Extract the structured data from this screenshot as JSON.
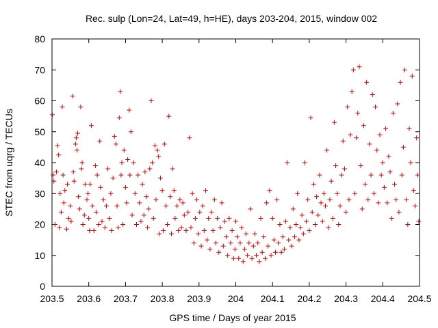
{
  "chart_data": {
    "type": "scatter",
    "title": "Rec. sulp (Lon=24, Lat=49, h=HE), days 203-204, 2015, window 002",
    "xlabel": "GPS time / Days of year 2015",
    "ylabel": "STEC from uqrg / TECUs",
    "xlim": [
      203.5,
      204.5
    ],
    "ylim": [
      0,
      80
    ],
    "x_ticks": [
      203.5,
      203.6,
      203.7,
      203.8,
      203.9,
      204.0,
      204.1,
      204.2,
      204.3,
      204.4,
      204.5
    ],
    "x_tick_labels": [
      "203.5",
      "203.6",
      "203.7",
      "203.8",
      "203.9",
      "204",
      "204.1",
      "204.2",
      "204.3",
      "204.4",
      "204.5"
    ],
    "y_ticks": [
      0,
      10,
      20,
      30,
      40,
      50,
      60,
      70,
      80
    ],
    "y_tick_labels": [
      "0",
      "10",
      "20",
      "30",
      "40",
      "50",
      "60",
      "70",
      "80"
    ],
    "grid": false,
    "marker": "+",
    "series": [
      {
        "name": "STEC",
        "color": "#cc0000",
        "points": [
          [
            203.501,
            55.5
          ],
          [
            203.503,
            36
          ],
          [
            203.505,
            34
          ],
          [
            203.508,
            20
          ],
          [
            203.512,
            37
          ],
          [
            203.515,
            45.5
          ],
          [
            203.518,
            42.5
          ],
          [
            203.52,
            19
          ],
          [
            203.522,
            30
          ],
          [
            203.525,
            24
          ],
          [
            203.528,
            58
          ],
          [
            203.53,
            36
          ],
          [
            203.532,
            27
          ],
          [
            203.535,
            31
          ],
          [
            203.54,
            18.5
          ],
          [
            203.542,
            33
          ],
          [
            203.545,
            22
          ],
          [
            203.55,
            26
          ],
          [
            203.552,
            21
          ],
          [
            203.556,
            61.5
          ],
          [
            203.558,
            37
          ],
          [
            203.56,
            34
          ],
          [
            203.564,
            46
          ],
          [
            203.566,
            48
          ],
          [
            203.568,
            44
          ],
          [
            203.57,
            49.5
          ],
          [
            203.572,
            29
          ],
          [
            203.575,
            25
          ],
          [
            203.578,
            58
          ],
          [
            203.58,
            38
          ],
          [
            203.582,
            40
          ],
          [
            203.584,
            20
          ],
          [
            203.588,
            23
          ],
          [
            203.59,
            33
          ],
          [
            203.595,
            28
          ],
          [
            203.598,
            30
          ],
          [
            203.6,
            22
          ],
          [
            203.602,
            18
          ],
          [
            203.604,
            33
          ],
          [
            203.607,
            52
          ],
          [
            203.61,
            26
          ],
          [
            203.614,
            18
          ],
          [
            203.618,
            39
          ],
          [
            203.62,
            24
          ],
          [
            203.623,
            36
          ],
          [
            203.627,
            20
          ],
          [
            203.63,
            47
          ],
          [
            203.632,
            32
          ],
          [
            203.636,
            21
          ],
          [
            203.64,
            28
          ],
          [
            203.644,
            19
          ],
          [
            203.648,
            26
          ],
          [
            203.652,
            38
          ],
          [
            203.656,
            22
          ],
          [
            203.66,
            30
          ],
          [
            203.662,
            18
          ],
          [
            203.666,
            35
          ],
          [
            203.67,
            48.5
          ],
          [
            203.674,
            46
          ],
          [
            203.677,
            26
          ],
          [
            203.68,
            19
          ],
          [
            203.683,
            54.5
          ],
          [
            203.686,
            63
          ],
          [
            203.688,
            36
          ],
          [
            203.69,
            40
          ],
          [
            203.693,
            20
          ],
          [
            203.696,
            44
          ],
          [
            203.7,
            32
          ],
          [
            203.703,
            27
          ],
          [
            203.706,
            41
          ],
          [
            203.71,
            57
          ],
          [
            203.712,
            36
          ],
          [
            203.715,
            50
          ],
          [
            203.718,
            23
          ],
          [
            203.722,
            40
          ],
          [
            203.726,
            30
          ],
          [
            203.73,
            20
          ],
          [
            203.734,
            36
          ],
          [
            203.738,
            27
          ],
          [
            203.742,
            21
          ],
          [
            203.746,
            33
          ],
          [
            203.75,
            23
          ],
          [
            203.753,
            37
          ],
          [
            203.757,
            29
          ],
          [
            203.76,
            19
          ],
          [
            203.763,
            25
          ],
          [
            203.766,
            38
          ],
          [
            203.77,
            60
          ],
          [
            203.773,
            40
          ],
          [
            203.776,
            22
          ],
          [
            203.78,
            45.5
          ],
          [
            203.783,
            28
          ],
          [
            203.787,
            44
          ],
          [
            203.79,
            42
          ],
          [
            203.792,
            17
          ],
          [
            203.795,
            35
          ],
          [
            203.8,
            31
          ],
          [
            203.803,
            18
          ],
          [
            203.806,
            46
          ],
          [
            203.81,
            26
          ],
          [
            203.814,
            20
          ],
          [
            203.818,
            55
          ],
          [
            203.822,
            29
          ],
          [
            203.825,
            17
          ],
          [
            203.828,
            38
          ],
          [
            203.832,
            31
          ],
          [
            203.835,
            22
          ],
          [
            203.84,
            26
          ],
          [
            203.844,
            18
          ],
          [
            203.848,
            28
          ],
          [
            203.852,
            19
          ],
          [
            203.856,
            27
          ],
          [
            203.86,
            23
          ],
          [
            203.865,
            18
          ],
          [
            203.87,
            24
          ],
          [
            203.874,
            48
          ],
          [
            203.878,
            19
          ],
          [
            203.882,
            30
          ],
          [
            203.886,
            14
          ],
          [
            203.89,
            22
          ],
          [
            203.894,
            28
          ],
          [
            203.898,
            17
          ],
          [
            203.902,
            24
          ],
          [
            203.906,
            13
          ],
          [
            203.91,
            26
          ],
          [
            203.914,
            18
          ],
          [
            203.918,
            31
          ],
          [
            203.922,
            15
          ],
          [
            203.926,
            22
          ],
          [
            203.93,
            12
          ],
          [
            203.934,
            24
          ],
          [
            203.938,
            18
          ],
          [
            203.942,
            28
          ],
          [
            203.946,
            14
          ],
          [
            203.95,
            22
          ],
          [
            203.954,
            11
          ],
          [
            203.958,
            19
          ],
          [
            203.962,
            27
          ],
          [
            203.966,
            13
          ],
          [
            203.97,
            21
          ],
          [
            203.974,
            16
          ],
          [
            203.978,
            10
          ],
          [
            203.982,
            22
          ],
          [
            203.986,
            14
          ],
          [
            203.99,
            18
          ],
          [
            203.994,
            9
          ],
          [
            203.998,
            12
          ],
          [
            204.0,
            21
          ],
          [
            204.004,
            16
          ],
          [
            204.008,
            9
          ],
          [
            204.012,
            14
          ],
          [
            204.016,
            19
          ],
          [
            204.02,
            8
          ],
          [
            204.024,
            12
          ],
          [
            204.028,
            17
          ],
          [
            204.032,
            10
          ],
          [
            204.036,
            14
          ],
          [
            204.04,
            25
          ],
          [
            204.044,
            9
          ],
          [
            204.048,
            13
          ],
          [
            204.052,
            17
          ],
          [
            204.056,
            10
          ],
          [
            204.06,
            14
          ],
          [
            204.064,
            8
          ],
          [
            204.068,
            22
          ],
          [
            204.072,
            11
          ],
          [
            204.076,
            16
          ],
          [
            204.08,
            9
          ],
          [
            204.084,
            27
          ],
          [
            204.088,
            13
          ],
          [
            204.092,
            31
          ],
          [
            204.096,
            10
          ],
          [
            204.1,
            22
          ],
          [
            204.104,
            15
          ],
          [
            204.108,
            11
          ],
          [
            204.112,
            28
          ],
          [
            204.116,
            14
          ],
          [
            204.12,
            20
          ],
          [
            204.124,
            11
          ],
          [
            204.128,
            16
          ],
          [
            204.132,
            12
          ],
          [
            204.136,
            21
          ],
          [
            204.14,
            40
          ],
          [
            204.144,
            15
          ],
          [
            204.148,
            19
          ],
          [
            204.152,
            13
          ],
          [
            204.156,
            25
          ],
          [
            204.16,
            16
          ],
          [
            204.164,
            20
          ],
          [
            204.168,
            30
          ],
          [
            204.172,
            15
          ],
          [
            204.176,
            19
          ],
          [
            204.18,
            23
          ],
          [
            204.184,
            17
          ],
          [
            204.188,
            40
          ],
          [
            204.192,
            21
          ],
          [
            204.196,
            28
          ],
          [
            204.2,
            18
          ],
          [
            204.204,
            54.5
          ],
          [
            204.208,
            24
          ],
          [
            204.212,
            33
          ],
          [
            204.216,
            20
          ],
          [
            204.22,
            29
          ],
          [
            204.224,
            23
          ],
          [
            204.228,
            36
          ],
          [
            204.232,
            27
          ],
          [
            204.236,
            21
          ],
          [
            204.24,
            30
          ],
          [
            204.244,
            26
          ],
          [
            204.248,
            44
          ],
          [
            204.252,
            19
          ],
          [
            204.256,
            28
          ],
          [
            204.26,
            34
          ],
          [
            204.264,
            22
          ],
          [
            204.268,
            53
          ],
          [
            204.272,
            39
          ],
          [
            204.276,
            30
          ],
          [
            204.28,
            20
          ],
          [
            204.284,
            26
          ],
          [
            204.288,
            36
          ],
          [
            204.292,
            47
          ],
          [
            204.296,
            38
          ],
          [
            204.3,
            24
          ],
          [
            204.304,
            58
          ],
          [
            204.308,
            28
          ],
          [
            204.312,
            49
          ],
          [
            204.316,
            63
          ],
          [
            204.32,
            70
          ],
          [
            204.324,
            30
          ],
          [
            204.328,
            48
          ],
          [
            204.332,
            56
          ],
          [
            204.336,
            71
          ],
          [
            204.34,
            39
          ],
          [
            204.344,
            25
          ],
          [
            204.348,
            52
          ],
          [
            204.352,
            33
          ],
          [
            204.356,
            66
          ],
          [
            204.36,
            28
          ],
          [
            204.364,
            46
          ],
          [
            204.368,
            36
          ],
          [
            204.372,
            62
          ],
          [
            204.376,
            30
          ],
          [
            204.38,
            58
          ],
          [
            204.384,
            44
          ],
          [
            204.388,
            27
          ],
          [
            204.392,
            49
          ],
          [
            204.396,
            36
          ],
          [
            204.4,
            40
          ],
          [
            204.404,
            32
          ],
          [
            204.408,
            51
          ],
          [
            204.412,
            27
          ],
          [
            204.416,
            42
          ],
          [
            204.42,
            37
          ],
          [
            204.424,
            22
          ],
          [
            204.428,
            56
          ],
          [
            204.432,
            33
          ],
          [
            204.436,
            28
          ],
          [
            204.44,
            59
          ],
          [
            204.444,
            24
          ],
          [
            204.448,
            66
          ],
          [
            204.452,
            36
          ],
          [
            204.456,
            45
          ],
          [
            204.46,
            70
          ],
          [
            204.464,
            28
          ],
          [
            204.468,
            20
          ],
          [
            204.472,
            51
          ],
          [
            204.476,
            40
          ],
          [
            204.48,
            68
          ],
          [
            204.484,
            31
          ],
          [
            204.488,
            26
          ],
          [
            204.492,
            48
          ],
          [
            204.495,
            36
          ],
          [
            204.498,
            21
          ]
        ]
      }
    ]
  }
}
